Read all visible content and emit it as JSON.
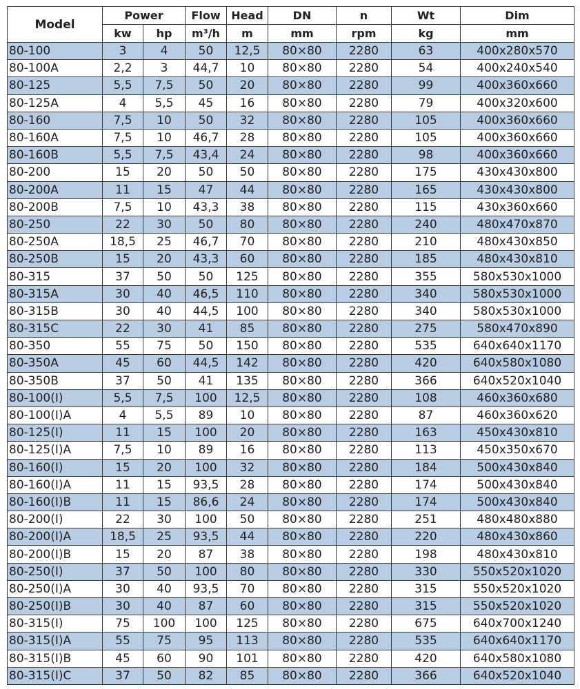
{
  "colors": {
    "row_highlight": "#b8cce4",
    "border": "#3a3a3a"
  },
  "header": {
    "model": "Model",
    "power": "Power",
    "flow": "Flow",
    "head": "Head",
    "dn": "DN",
    "n": "n",
    "wt": "Wt",
    "dim": "Dim",
    "units": {
      "kw": "kw",
      "hp": "hp",
      "flow": "m³/h",
      "head": "m",
      "dn": "mm",
      "n": "rpm",
      "wt": "kg",
      "dim": "mm"
    }
  },
  "rows": [
    [
      "80-100",
      "3",
      "4",
      "50",
      "12,5",
      "80×80",
      "2280",
      "63",
      "400x280x570"
    ],
    [
      "80-100A",
      "2,2",
      "3",
      "44,7",
      "10",
      "80×80",
      "2280",
      "54",
      "400x240x540"
    ],
    [
      "80-125",
      "5,5",
      "7,5",
      "50",
      "20",
      "80×80",
      "2280",
      "99",
      "400x360x660"
    ],
    [
      "80-125A",
      "4",
      "5,5",
      "45",
      "16",
      "80×80",
      "2280",
      "79",
      "400x320x600"
    ],
    [
      "80-160",
      "7,5",
      "10",
      "50",
      "32",
      "80×80",
      "2280",
      "105",
      "400x360x660"
    ],
    [
      "80-160A",
      "7,5",
      "10",
      "46,7",
      "28",
      "80×80",
      "2280",
      "105",
      "400x360x660"
    ],
    [
      "80-160B",
      "5,5",
      "7,5",
      "43,4",
      "24",
      "80×80",
      "2280",
      "98",
      "400x360x660"
    ],
    [
      "80-200",
      "15",
      "20",
      "50",
      "50",
      "80×80",
      "2280",
      "175",
      "430x430x800"
    ],
    [
      "80-200A",
      "11",
      "15",
      "47",
      "44",
      "80×80",
      "2280",
      "165",
      "430x430x800"
    ],
    [
      "80-200B",
      "7,5",
      "10",
      "43,3",
      "38",
      "80×80",
      "2280",
      "115",
      "430x360x660"
    ],
    [
      "80-250",
      "22",
      "30",
      "50",
      "80",
      "80×80",
      "2280",
      "240",
      "480x470x870"
    ],
    [
      "80-250A",
      "18,5",
      "25",
      "46,7",
      "70",
      "80×80",
      "2280",
      "210",
      "480x430x850"
    ],
    [
      "80-250B",
      "15",
      "20",
      "43,3",
      "60",
      "80×80",
      "2280",
      "185",
      "480x430x810"
    ],
    [
      "80-315",
      "37",
      "50",
      "50",
      "125",
      "80×80",
      "2280",
      "355",
      "580x530x1000"
    ],
    [
      "80-315A",
      "30",
      "40",
      "46,5",
      "110",
      "80×80",
      "2280",
      "340",
      "580x530x1000"
    ],
    [
      "80-315B",
      "30",
      "40",
      "44,5",
      "100",
      "80×80",
      "2280",
      "340",
      "580x530x1000"
    ],
    [
      "80-315C",
      "22",
      "30",
      "41",
      "85",
      "80×80",
      "2280",
      "275",
      "580x470x890"
    ],
    [
      "80-350",
      "55",
      "75",
      "50",
      "150",
      "80×80",
      "2280",
      "535",
      "640x640x1170"
    ],
    [
      "80-350A",
      "45",
      "60",
      "44,5",
      "142",
      "80×80",
      "2280",
      "420",
      "640x580x1080"
    ],
    [
      "80-350B",
      "37",
      "50",
      "41",
      "135",
      "80×80",
      "2280",
      "366",
      "640x520x1040"
    ],
    [
      "80-100(I)",
      "5,5",
      "7,5",
      "100",
      "12,5",
      "80×80",
      "2280",
      "108",
      "460x360x680"
    ],
    [
      "80-100(I)A",
      "4",
      "5,5",
      "89",
      "10",
      "80×80",
      "2280",
      "87",
      "460x360x620"
    ],
    [
      "80-125(I)",
      "11",
      "15",
      "100",
      "20",
      "80×80",
      "2280",
      "163",
      "450x430x810"
    ],
    [
      "80-125(I)A",
      "7,5",
      "10",
      "89",
      "16",
      "80×80",
      "2280",
      "113",
      "450x350x670"
    ],
    [
      "80-160(I)",
      "15",
      "20",
      "100",
      "32",
      "80×80",
      "2280",
      "184",
      "500x430x840"
    ],
    [
      "80-160(I)A",
      "11",
      "15",
      "93,5",
      "28",
      "80×80",
      "2280",
      "174",
      "500x430x840"
    ],
    [
      "80-160(I)B",
      "11",
      "15",
      "86,6",
      "24",
      "80×80",
      "2280",
      "174",
      "500x430x840"
    ],
    [
      "80-200(I)",
      "22",
      "30",
      "100",
      "50",
      "80×80",
      "2280",
      "251",
      "480x480x880"
    ],
    [
      "80-200(I)A",
      "18,5",
      "25",
      "93,5",
      "44",
      "80×80",
      "2280",
      "220",
      "480x430x860"
    ],
    [
      "80-200(I)B",
      "15",
      "20",
      "87",
      "38",
      "80×80",
      "2280",
      "198",
      "480x430x810"
    ],
    [
      "80-250(I)",
      "37",
      "50",
      "100",
      "80",
      "80×80",
      "2280",
      "330",
      "550x520x1020"
    ],
    [
      "80-250(I)A",
      "30",
      "40",
      "93,5",
      "70",
      "80×80",
      "2280",
      "315",
      "550x520x1020"
    ],
    [
      "80-250(I)B",
      "30",
      "40",
      "87",
      "60",
      "80×80",
      "2280",
      "315",
      "550x520x1020"
    ],
    [
      "80-315(I)",
      "75",
      "100",
      "100",
      "125",
      "80×80",
      "2280",
      "675",
      "640x700x1240"
    ],
    [
      "80-315(I)A",
      "55",
      "75",
      "95",
      "113",
      "80×80",
      "2280",
      "535",
      "640x640x1170"
    ],
    [
      "80-315(I)B",
      "45",
      "60",
      "90",
      "101",
      "80×80",
      "2280",
      "420",
      "640x580x1080"
    ],
    [
      "80-315(I)C",
      "37",
      "50",
      "82",
      "85",
      "80×80",
      "2280",
      "366",
      "640x520x1040"
    ]
  ]
}
